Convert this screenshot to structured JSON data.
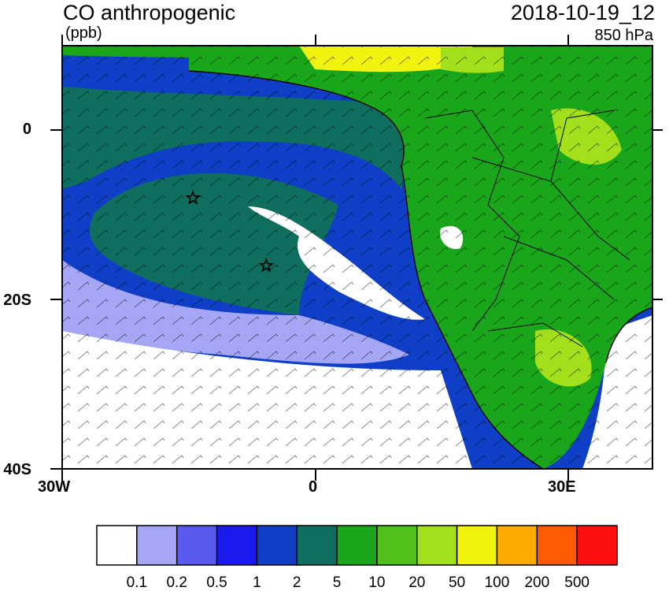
{
  "header": {
    "title": "CO anthropogenic",
    "units": "(ppb)",
    "datetime": "2018-10-19_12",
    "level": "850 hPa"
  },
  "axes": {
    "x_tick_labels": [
      "30W",
      "0",
      "30E"
    ],
    "y_tick_labels": [
      "0",
      "20S",
      "40S"
    ],
    "xlim": [
      -30,
      40
    ],
    "ylim": [
      -40,
      10
    ]
  },
  "colorbar": {
    "labels": [
      "0.1",
      "0.2",
      "0.5",
      "1",
      "2",
      "5",
      "10",
      "20",
      "50",
      "100",
      "200",
      "500"
    ],
    "colors": [
      "#ffffff",
      "#a6a6f6",
      "#5a5af0",
      "#1a1aef",
      "#0f3fc6",
      "#0f6e5e",
      "#1aa61a",
      "#4fc11a",
      "#a3df1a",
      "#f2f20f",
      "#ffaa00",
      "#ff5a00",
      "#ff0e0e"
    ]
  },
  "map": {
    "markers": [
      {
        "name": "star-marker-1",
        "lon": -14.5,
        "lat": -8
      },
      {
        "name": "star-marker-2",
        "lon": -5.8,
        "lat": -16
      }
    ],
    "colors": {
      "ocean_background": "#0f6e5e",
      "land": "#1aa61a"
    }
  }
}
